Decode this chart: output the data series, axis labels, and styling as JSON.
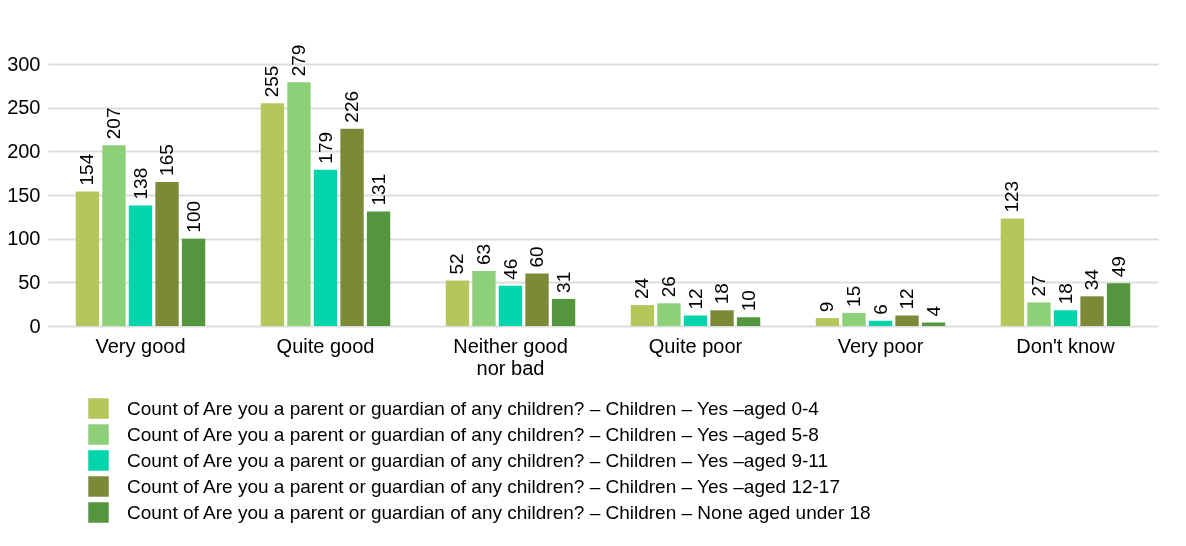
{
  "chart_data": {
    "type": "bar",
    "categories": [
      "Very good",
      "Quite good",
      "Neither good nor bad",
      "Quite poor",
      "Very poor",
      "Don't know"
    ],
    "series": [
      {
        "name": "Count of Are you a parent or guardian of any children? – Children – Yes –aged 0-4",
        "color": "#b3c75b",
        "values": [
          154,
          255,
          52,
          24,
          9,
          123
        ]
      },
      {
        "name": "Count of Are you a parent or guardian of any children? – Children – Yes –aged 5-8",
        "color": "#8dd07a",
        "values": [
          207,
          279,
          63,
          26,
          15,
          27
        ]
      },
      {
        "name": "Count of Are you a parent or guardian of any children? – Children – Yes –aged 9-11",
        "color": "#00d4aa",
        "values": [
          138,
          179,
          46,
          12,
          6,
          18
        ]
      },
      {
        "name": "Count of Are you a parent or guardian of any children? – Children – Yes –aged 12-17",
        "color": "#7a8a36",
        "values": [
          165,
          226,
          60,
          18,
          12,
          34
        ]
      },
      {
        "name": "Count of Are you a parent or guardian of any children? – Children – None aged under 18",
        "color": "#54963e",
        "values": [
          100,
          131,
          31,
          10,
          4,
          49
        ]
      }
    ],
    "ylim": [
      0,
      300
    ],
    "yticks": [
      0,
      50,
      100,
      150,
      200,
      250,
      300
    ],
    "grid": "y",
    "data_labels": true,
    "legend": "bottom left"
  }
}
